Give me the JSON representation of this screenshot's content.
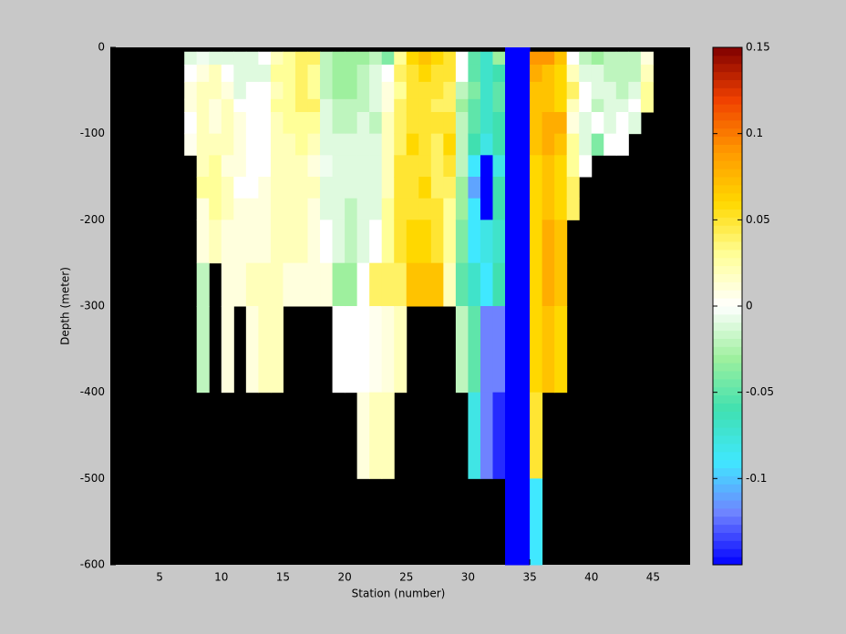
{
  "chart_data": {
    "type": "heatmap",
    "xlabel": "Station (number)",
    "ylabel": "Depth (meter)",
    "xlim": [
      1,
      48
    ],
    "ylim": [
      -600,
      0
    ],
    "xticks": [
      5,
      10,
      15,
      20,
      25,
      30,
      35,
      40,
      45
    ],
    "yticks": [
      -600,
      -500,
      -400,
      -300,
      -200,
      -100,
      0
    ],
    "x_edges": [
      7,
      8,
      9,
      10,
      11,
      12,
      13,
      14,
      15,
      16,
      17,
      18,
      19,
      20,
      21,
      22,
      23,
      24,
      25,
      26,
      27,
      28,
      29,
      30,
      31,
      32,
      33,
      34,
      35,
      36,
      37,
      38,
      39,
      40,
      41,
      42,
      43,
      44,
      45
    ],
    "y_edges": [
      0,
      -5,
      -20,
      -40,
      -60,
      -75,
      -100,
      -125,
      -150,
      -175,
      -200,
      -250,
      -300,
      -400,
      -500,
      -600
    ],
    "values": [
      [
        null,
        -0.01,
        0.0,
        0.01,
        0.01,
        0.0,
        0.005,
        null,
        null,
        null,
        null,
        null,
        null,
        null,
        null
      ],
      [
        null,
        -0.005,
        0.01,
        0.02,
        0.02,
        0.02,
        0.02,
        0.02,
        0.03,
        0.01,
        0.01,
        -0.02,
        -0.02,
        null,
        null
      ],
      [
        null,
        -0.01,
        0.02,
        0.02,
        0.01,
        0.01,
        0.02,
        0.03,
        0.03,
        0.03,
        0.02,
        null,
        null,
        null,
        null
      ],
      [
        null,
        -0.01,
        0.0,
        0.01,
        0.02,
        0.02,
        0.02,
        0.01,
        0.02,
        0.02,
        0.01,
        0.01,
        0.01,
        null,
        null
      ],
      [
        null,
        -0.01,
        -0.01,
        -0.01,
        0.0,
        0.01,
        0.01,
        0.01,
        0.0,
        0.01,
        0.01,
        0.01,
        null,
        null,
        null
      ],
      [
        null,
        -0.01,
        -0.01,
        0.0,
        0.0,
        0.0,
        0.0,
        0.0,
        0.0,
        0.01,
        0.01,
        0.02,
        0.01,
        null,
        null
      ],
      [
        null,
        0.0,
        -0.01,
        0.0,
        0.0,
        0.0,
        0.0,
        0.0,
        0.01,
        0.01,
        0.01,
        0.02,
        0.02,
        null,
        null
      ],
      [
        null,
        0.02,
        0.03,
        0.02,
        0.03,
        0.02,
        0.02,
        0.02,
        0.02,
        0.02,
        0.02,
        0.02,
        0.02,
        null,
        null
      ],
      [
        null,
        0.03,
        0.03,
        0.03,
        0.03,
        0.03,
        0.02,
        0.02,
        0.02,
        0.02,
        0.02,
        0.01,
        null,
        null,
        null
      ],
      [
        null,
        0.04,
        0.04,
        0.04,
        0.04,
        0.03,
        0.03,
        0.02,
        0.02,
        0.02,
        0.02,
        0.01,
        null,
        null,
        null
      ],
      [
        null,
        0.04,
        0.03,
        0.03,
        0.04,
        0.03,
        0.02,
        0.01,
        0.02,
        0.01,
        0.01,
        0.01,
        null,
        null,
        null
      ],
      [
        null,
        -0.02,
        -0.02,
        -0.02,
        -0.01,
        -0.01,
        -0.01,
        -0.005,
        -0.01,
        -0.01,
        0.0,
        0.01,
        null,
        null,
        null
      ],
      [
        null,
        -0.03,
        -0.03,
        -0.03,
        -0.02,
        -0.02,
        -0.01,
        -0.01,
        -0.01,
        -0.01,
        -0.01,
        -0.03,
        0.0,
        null,
        null
      ],
      [
        null,
        -0.03,
        -0.03,
        -0.03,
        -0.02,
        -0.02,
        -0.01,
        -0.01,
        -0.01,
        -0.02,
        -0.02,
        -0.03,
        0.0,
        null,
        null
      ],
      [
        null,
        -0.03,
        -0.02,
        -0.02,
        -0.02,
        -0.01,
        -0.01,
        -0.01,
        -0.01,
        -0.01,
        -0.01,
        0.0,
        0.0,
        0.01,
        null
      ],
      [
        null,
        -0.02,
        -0.01,
        -0.01,
        -0.01,
        -0.02,
        -0.01,
        -0.01,
        -0.01,
        -0.01,
        0.0,
        0.04,
        0.005,
        0.02,
        null
      ],
      [
        null,
        -0.04,
        0.0,
        0.01,
        0.01,
        0.02,
        0.02,
        0.02,
        0.02,
        0.03,
        0.03,
        0.04,
        0.01,
        0.02,
        null
      ],
      [
        null,
        0.03,
        0.04,
        0.03,
        0.04,
        0.04,
        0.04,
        0.05,
        0.05,
        0.05,
        0.05,
        0.04,
        0.02,
        null,
        null
      ],
      [
        null,
        0.06,
        0.05,
        0.05,
        0.05,
        0.05,
        0.06,
        0.05,
        0.05,
        0.05,
        0.06,
        0.07,
        null,
        null,
        null
      ],
      [
        null,
        0.07,
        0.06,
        0.05,
        0.05,
        0.05,
        0.05,
        0.05,
        0.06,
        0.05,
        0.06,
        0.07,
        null,
        null,
        null
      ],
      [
        null,
        0.06,
        0.05,
        0.05,
        0.04,
        0.05,
        0.04,
        0.04,
        0.04,
        0.05,
        0.05,
        0.07,
        null,
        null,
        null
      ],
      [
        null,
        0.05,
        0.05,
        0.04,
        0.04,
        0.05,
        0.06,
        0.05,
        0.04,
        0.03,
        0.03,
        0.02,
        null,
        null,
        null
      ],
      [
        null,
        0.0,
        0.0,
        -0.02,
        -0.03,
        -0.02,
        -0.02,
        -0.02,
        -0.03,
        -0.03,
        -0.04,
        -0.05,
        -0.02,
        null,
        null
      ],
      [
        null,
        -0.05,
        -0.05,
        -0.04,
        -0.05,
        -0.05,
        -0.06,
        -0.09,
        -0.11,
        -0.09,
        -0.09,
        -0.07,
        -0.05,
        -0.08,
        null
      ],
      [
        null,
        -0.07,
        -0.07,
        -0.07,
        -0.07,
        -0.07,
        -0.08,
        -0.15,
        -0.15,
        -0.15,
        -0.08,
        -0.09,
        -0.12,
        -0.12,
        null
      ],
      [
        null,
        -0.03,
        -0.06,
        -0.05,
        -0.05,
        -0.06,
        -0.06,
        -0.08,
        -0.06,
        -0.06,
        -0.07,
        -0.06,
        -0.12,
        -0.14,
        null
      ],
      [
        -0.15,
        -0.15,
        -0.15,
        -0.15,
        -0.15,
        -0.15,
        -0.15,
        -0.15,
        -0.15,
        -0.15,
        -0.15,
        -0.15,
        -0.15,
        -0.15,
        -0.15
      ],
      [
        -0.15,
        -0.15,
        -0.15,
        -0.15,
        -0.15,
        -0.15,
        -0.15,
        -0.15,
        -0.15,
        -0.15,
        -0.15,
        -0.15,
        -0.15,
        -0.15,
        -0.15
      ],
      [
        null,
        0.09,
        0.08,
        0.07,
        0.07,
        0.07,
        0.07,
        0.06,
        0.06,
        0.06,
        0.06,
        0.06,
        0.06,
        0.05,
        -0.09
      ],
      [
        null,
        0.09,
        0.07,
        0.07,
        0.07,
        0.08,
        0.08,
        0.07,
        0.07,
        0.07,
        0.08,
        0.08,
        0.07,
        null,
        null
      ],
      [
        null,
        0.07,
        0.06,
        0.06,
        0.06,
        0.08,
        0.07,
        0.06,
        0.06,
        0.06,
        0.07,
        0.07,
        0.06,
        null,
        null
      ],
      [
        null,
        0.0,
        0.02,
        0.04,
        0.02,
        0.01,
        0.03,
        0.03,
        0.04,
        0.04,
        null,
        null,
        null,
        null,
        null
      ],
      [
        null,
        -0.02,
        -0.01,
        0.0,
        0.0,
        -0.01,
        -0.01,
        0.0,
        null,
        null,
        null,
        null,
        null,
        null,
        null
      ],
      [
        null,
        -0.03,
        -0.01,
        -0.01,
        -0.02,
        0.0,
        -0.04,
        null,
        null,
        null,
        null,
        null,
        null,
        null,
        null
      ],
      [
        null,
        -0.02,
        -0.02,
        -0.01,
        -0.01,
        -0.01,
        0.0,
        null,
        null,
        null,
        null,
        null,
        null,
        null,
        null
      ],
      [
        null,
        -0.02,
        -0.02,
        -0.02,
        -0.01,
        0.0,
        0.0,
        null,
        null,
        null,
        null,
        null,
        null,
        null,
        null
      ],
      [
        null,
        -0.02,
        -0.02,
        -0.01,
        0.0,
        -0.01,
        null,
        null,
        null,
        null,
        null,
        null,
        null,
        null,
        null
      ],
      [
        null,
        0.01,
        0.02,
        0.03,
        0.03,
        null,
        null,
        null,
        null,
        null,
        null,
        null,
        null,
        null,
        null
      ]
    ],
    "clim": [
      -0.15,
      0.15
    ],
    "cticks": [
      -0.1,
      -0.05,
      0,
      0.05,
      0.1,
      0.15
    ],
    "colormap": [
      "#0000ff",
      "#6f82ff",
      "#40e8ff",
      "#40e0b0",
      "#9ef09e",
      "#ffffff",
      "#ffff98",
      "#ffd800",
      "#ff9800",
      "#f04000",
      "#800000"
    ],
    "background": "#000000"
  }
}
